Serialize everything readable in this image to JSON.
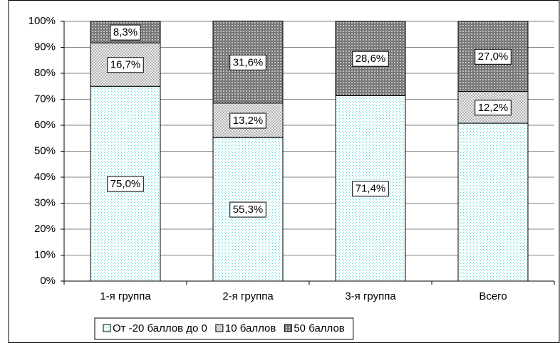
{
  "chart_data": {
    "type": "stacked_bar",
    "categories": [
      "1-я группа",
      "2-я группа",
      "3-я группа",
      "Всего"
    ],
    "series": [
      {
        "name": "От -20 баллов до 0",
        "color": "#d8d8d8",
        "values": [
          75.0,
          55.3,
          71.4,
          60.8
        ],
        "value_labels": [
          "75,0%",
          "55,3%",
          "71,4%",
          null
        ]
      },
      {
        "name": "10 баллов",
        "color": "#a8a8a8",
        "values": [
          16.7,
          13.2,
          null,
          12.2
        ],
        "value_labels": [
          "16,7%",
          "13,2%",
          null,
          "12,2%"
        ]
      },
      {
        "name": "50 баллов",
        "color": "#707070",
        "values": [
          8.3,
          31.6,
          28.6,
          27.0
        ],
        "value_labels": [
          "8,3%",
          "31,6%",
          "28,6%",
          "27,0%"
        ]
      }
    ],
    "ylim": [
      0,
      100
    ],
    "yticks": [
      {
        "value": 0,
        "label": "0%"
      },
      {
        "value": 10,
        "label": "10%"
      },
      {
        "value": 20,
        "label": "20%"
      },
      {
        "value": 30,
        "label": "30%"
      },
      {
        "value": 40,
        "label": "40%"
      },
      {
        "value": 50,
        "label": "50%"
      },
      {
        "value": 60,
        "label": "60%"
      },
      {
        "value": 70,
        "label": "70%"
      },
      {
        "value": 80,
        "label": "80%"
      },
      {
        "value": 90,
        "label": "90%"
      },
      {
        "value": 100,
        "label": "100%"
      }
    ],
    "grid": true,
    "legend": "bottom"
  }
}
